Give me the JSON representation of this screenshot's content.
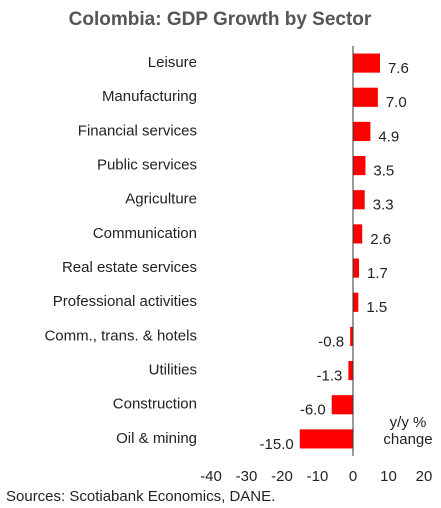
{
  "chart_data": {
    "type": "barh",
    "title": "Colombia: GDP Growth by Sector",
    "categories": [
      "Leisure",
      "Manufacturing",
      "Financial services",
      "Public services",
      "Agriculture",
      "Communication",
      "Real estate services",
      "Professional activities",
      "Comm., trans. & hotels",
      "Utilities",
      "Construction",
      "Oil & mining"
    ],
    "values": [
      7.6,
      7.0,
      4.9,
      3.5,
      3.3,
      2.6,
      1.7,
      1.5,
      -0.8,
      -1.3,
      -6.0,
      -15.0
    ],
    "value_labels": [
      "7.6",
      "7.0",
      "4.9",
      "3.5",
      "3.3",
      "2.6",
      "1.7",
      "1.5",
      "-0.8",
      "-1.3",
      "-6.0",
      "-15.0"
    ],
    "color": "#ff0000",
    "xlim": [
      -40,
      20
    ],
    "xticks": [
      -40,
      -30,
      -20,
      -10,
      0,
      10,
      20
    ],
    "annotations": [
      "y/y %",
      "change"
    ],
    "source": "Sources: Scotiabank Economics, DANE."
  }
}
